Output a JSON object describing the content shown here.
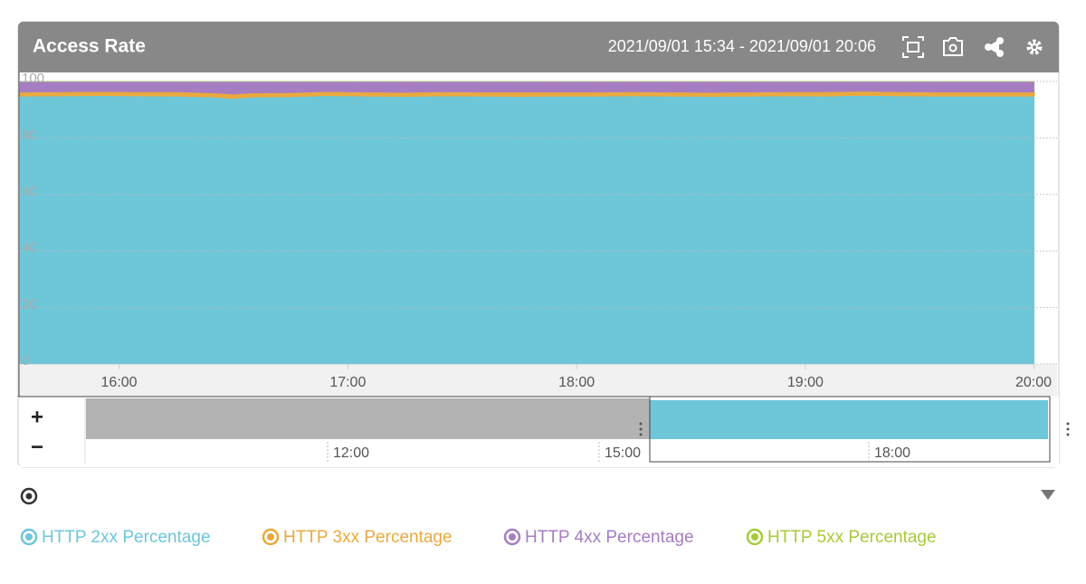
{
  "header": {
    "title": "Access Rate",
    "range": "2021/09/01 15:34 - 2021/09/01 20:06"
  },
  "chart_data": {
    "type": "stacked-area",
    "x": [
      "15:34",
      "15:45",
      "15:55",
      "16:05",
      "16:15",
      "16:25",
      "16:30",
      "16:35",
      "16:45",
      "16:55",
      "17:05",
      "17:15",
      "17:25",
      "17:35",
      "17:45",
      "17:55",
      "18:05",
      "18:15",
      "18:25",
      "18:35",
      "18:45",
      "18:55",
      "19:05",
      "19:15",
      "19:25",
      "19:35",
      "19:45",
      "19:55",
      "20:00"
    ],
    "series": [
      {
        "name": "HTTP 2xx Percentage",
        "color": "#6ec6d9",
        "values": [
          94.9,
          95.0,
          95.1,
          95.0,
          94.9,
          94.6,
          94.1,
          94.6,
          94.7,
          95.1,
          94.9,
          94.8,
          95.0,
          94.9,
          94.8,
          94.9,
          94.9,
          95.0,
          94.9,
          94.8,
          94.9,
          95.0,
          94.9,
          95.2,
          95.0,
          94.9,
          94.9,
          94.9,
          94.9
        ]
      },
      {
        "name": "HTTP 3xx Percentage",
        "color": "#eaa93e",
        "values": [
          1.3,
          1.3,
          1.3,
          1.3,
          1.4,
          1.3,
          1.4,
          1.3,
          1.3,
          1.3,
          1.3,
          1.3,
          1.3,
          1.3,
          1.4,
          1.3,
          1.3,
          1.3,
          1.3,
          1.3,
          1.3,
          1.3,
          1.4,
          1.3,
          1.3,
          1.3,
          1.3,
          1.3,
          1.3
        ]
      },
      {
        "name": "HTTP 4xx Percentage",
        "color": "#a67dc2",
        "values": [
          3.8,
          3.7,
          3.6,
          3.7,
          3.7,
          4.1,
          4.5,
          4.1,
          4.0,
          3.6,
          3.8,
          3.9,
          3.7,
          3.8,
          3.8,
          3.8,
          3.8,
          3.7,
          3.8,
          3.9,
          3.8,
          3.7,
          3.7,
          3.5,
          3.7,
          3.8,
          3.8,
          3.8,
          3.8
        ]
      },
      {
        "name": "HTTP 5xx Percentage",
        "color": "#a5cb3a",
        "values": [
          0,
          0,
          0,
          0,
          0,
          0,
          0,
          0,
          0,
          0,
          0,
          0,
          0,
          0,
          0,
          0,
          0,
          0,
          0,
          0,
          0,
          0,
          0,
          0,
          0,
          0,
          0,
          0,
          0
        ]
      }
    ],
    "xlim": [
      "15:34",
      "20:06"
    ],
    "xticks": [
      "16:00",
      "17:00",
      "18:00",
      "19:00",
      "20:00"
    ],
    "ylim": [
      0,
      100
    ],
    "yticks": [
      0,
      20,
      40,
      60,
      80,
      100
    ],
    "grid": true
  },
  "navigator": {
    "zoom_in": "+",
    "zoom_out": "−",
    "ticks": [
      "12:00",
      "15:00",
      "18:00"
    ]
  }
}
